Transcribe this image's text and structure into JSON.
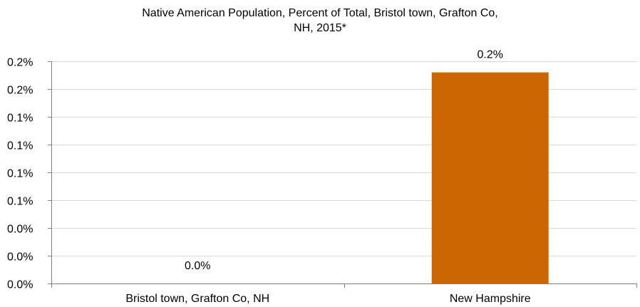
{
  "chart_data": {
    "type": "bar",
    "title_lines": [
      "Native American Population, Percent of Total, Bristol town, Grafton Co,",
      "NH, 2015*"
    ],
    "categories": [
      "Bristol town, Grafton Co, NH",
      "New Hampshire"
    ],
    "values": [
      0.0,
      0.19
    ],
    "data_labels": [
      "0.0%",
      "0.2%"
    ],
    "y_ticks": [
      0.0,
      0.025,
      0.05,
      0.075,
      0.1,
      0.125,
      0.15,
      0.175,
      0.2
    ],
    "y_tick_labels": [
      "0.0%",
      "0.0%",
      "0.0%",
      "0.1%",
      "0.1%",
      "0.1%",
      "0.1%",
      "0.2%",
      "0.2%"
    ],
    "ylim": [
      0,
      0.2
    ],
    "xlabel": "",
    "ylabel": "",
    "grid": true,
    "legend": "none",
    "colors": {
      "bar": "#CC6600",
      "grid": "#D9D9D9",
      "axis": "#808080"
    }
  }
}
